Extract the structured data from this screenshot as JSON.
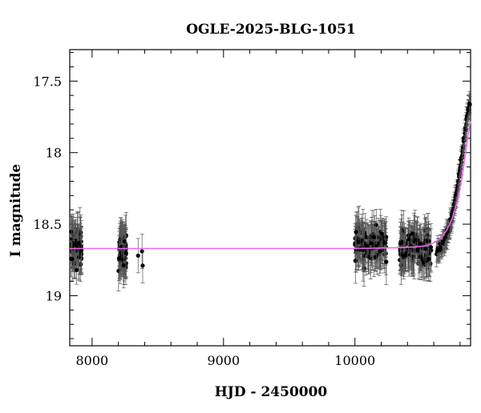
{
  "chart_data": {
    "type": "scatter",
    "title": "OGLE-2025-BLG-1051",
    "xlabel": "HJD - 2450000",
    "ylabel": "I magnitude",
    "xlim": [
      7830,
      10880
    ],
    "ylim": [
      19.35,
      17.28
    ],
    "y_inverted": true,
    "xticks": [
      8000,
      9000,
      10000
    ],
    "xtick_labels": [
      "8000",
      "9000",
      "10000"
    ],
    "yticks": [
      17.5,
      18,
      18.5,
      19
    ],
    "ytick_labels": [
      "17.5",
      "18",
      "18.5",
      "19"
    ],
    "grid": false,
    "legend": "none",
    "colors": {
      "points": "#000000",
      "model": "#ee66ee"
    },
    "observation_groups": [
      {
        "x_range": [
          7840,
          7920
        ],
        "count": 80,
        "mag_mean": 18.66,
        "scatter": 0.09,
        "err": 0.13
      },
      {
        "x_range": [
          8200,
          8260
        ],
        "count": 70,
        "mag_mean": 18.69,
        "scatter": 0.09,
        "err": 0.13
      },
      {
        "x_range": [
          10000,
          10240
        ],
        "count": 140,
        "mag_mean": 18.64,
        "scatter": 0.09,
        "err": 0.13
      },
      {
        "x_range": [
          10340,
          10580
        ],
        "count": 140,
        "mag_mean": 18.66,
        "scatter": 0.09,
        "err": 0.13
      }
    ],
    "extra_points": [
      {
        "x": 8350,
        "y": 18.72,
        "err": 0.12
      },
      {
        "x": 8380,
        "y": 18.69,
        "err": 0.12
      },
      {
        "x": 8385,
        "y": 18.79,
        "err": 0.12
      }
    ],
    "rise_points": [
      {
        "x": 10620,
        "y": 18.7
      },
      {
        "x": 10650,
        "y": 18.66
      },
      {
        "x": 10680,
        "y": 18.62
      },
      {
        "x": 10700,
        "y": 18.57
      },
      {
        "x": 10720,
        "y": 18.52
      },
      {
        "x": 10740,
        "y": 18.45
      },
      {
        "x": 10760,
        "y": 18.36
      },
      {
        "x": 10780,
        "y": 18.25
      },
      {
        "x": 10800,
        "y": 18.12
      },
      {
        "x": 10820,
        "y": 17.98
      },
      {
        "x": 10840,
        "y": 17.84
      },
      {
        "x": 10860,
        "y": 17.72
      },
      {
        "x": 10875,
        "y": 17.66
      }
    ],
    "model_curve": {
      "x": [
        7830,
        8500,
        9500,
        10000,
        10300,
        10450,
        10550,
        10600,
        10650,
        10700,
        10740,
        10780,
        10810,
        10840,
        10860,
        10880
      ],
      "y": [
        18.67,
        18.67,
        18.67,
        18.67,
        18.665,
        18.66,
        18.65,
        18.63,
        18.6,
        18.54,
        18.46,
        18.34,
        18.2,
        18.02,
        17.88,
        17.78
      ]
    }
  }
}
